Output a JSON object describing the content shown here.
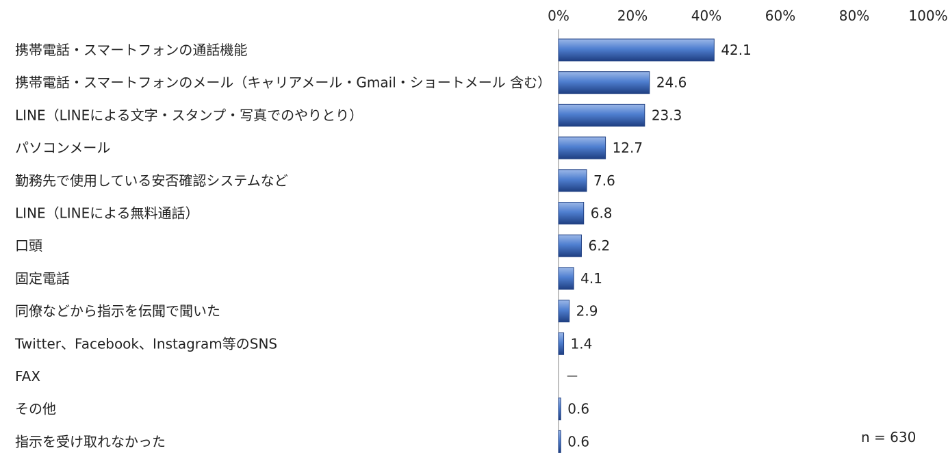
{
  "chart_data": {
    "type": "bar",
    "orientation": "horizontal",
    "categories": [
      "携帯電話・スマートフォンの通話機能",
      "携帯電話・スマートフォンのメール（キャリアメール・Gmail・ショートメール 含む）",
      "LINE（LINEによる文字・スタンプ・写真でのやりとり）",
      "パソコンメール",
      "勤務先で使用している安否確認システムなど",
      "LINE（LINEによる無料通話）",
      "口頭",
      "固定電話",
      "同僚などから指示を伝聞で聞いた",
      "Twitter、Facebook、Instagram等のSNS",
      "FAX",
      "その他",
      "指示を受け取れなかった"
    ],
    "values": [
      42.1,
      24.6,
      23.3,
      12.7,
      7.6,
      6.8,
      6.2,
      4.1,
      2.9,
      1.4,
      null,
      0.6,
      0.6
    ],
    "value_labels": [
      "42.1",
      "24.6",
      "23.3",
      "12.7",
      "7.6",
      "6.8",
      "6.2",
      "4.1",
      "2.9",
      "1.4",
      "－",
      "0.6",
      "0.6"
    ],
    "x_ticks": [
      "0%",
      "20%",
      "40%",
      "60%",
      "80%",
      "100%"
    ],
    "xlim": [
      0,
      100
    ],
    "x_axis_position": "top",
    "grid": false,
    "bar_color": "#4472c4",
    "note": "n = 630"
  }
}
